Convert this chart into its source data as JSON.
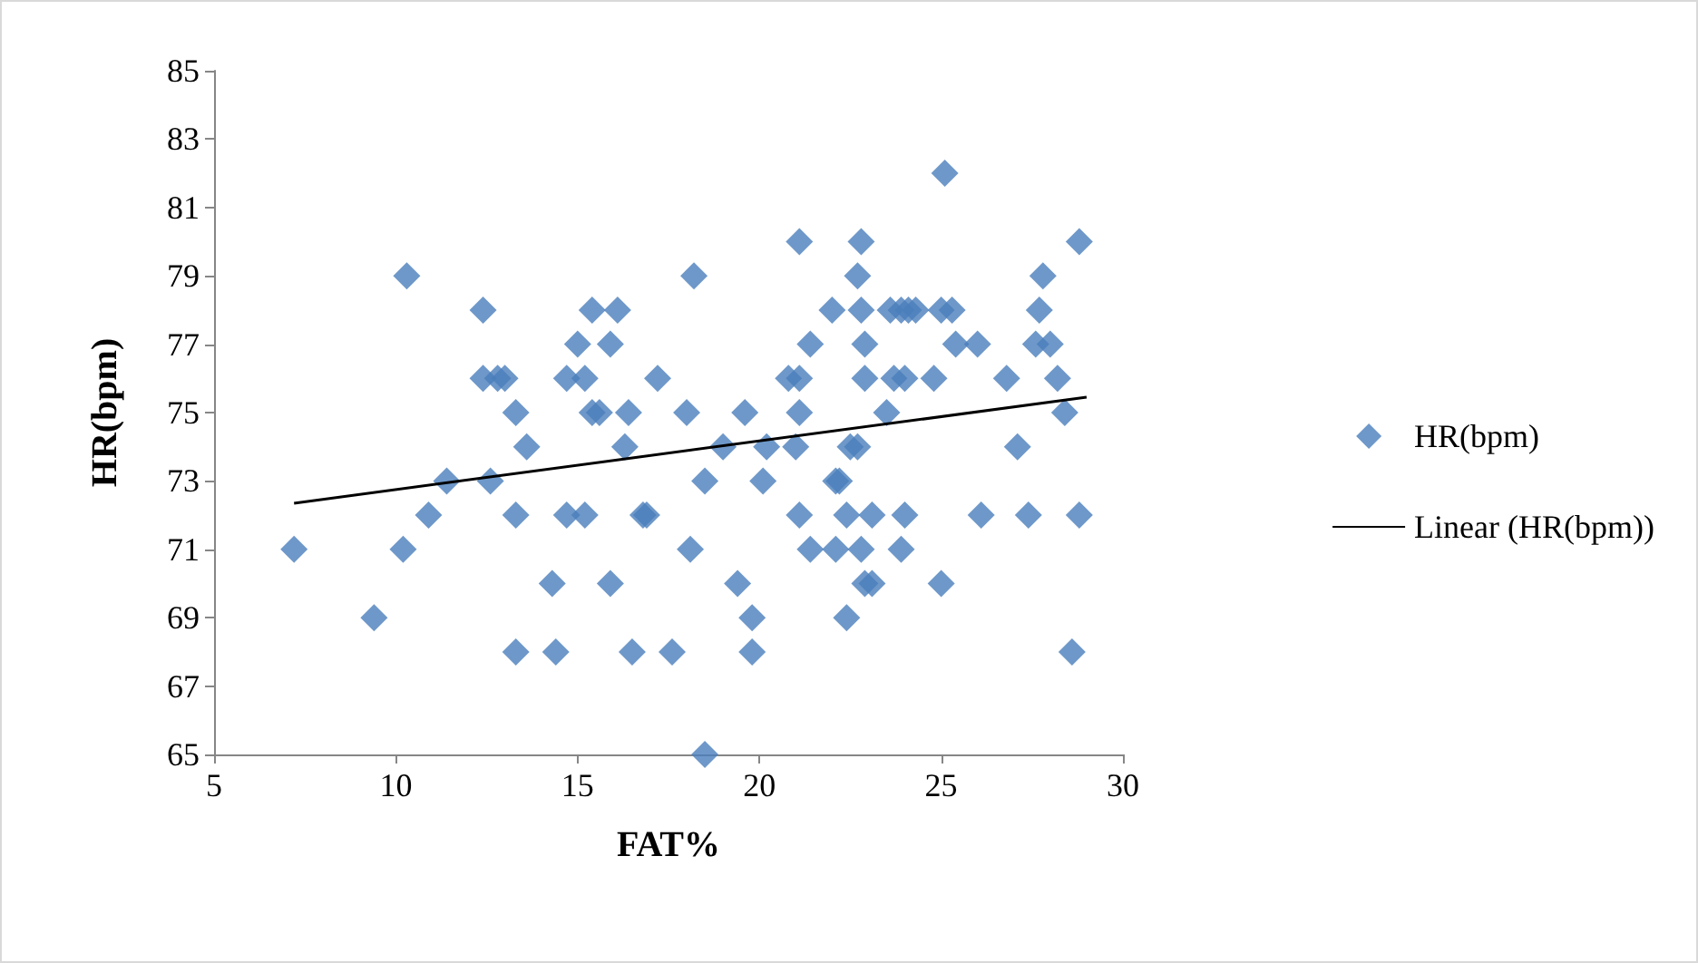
{
  "chart_data": {
    "type": "scatter",
    "xlabel": "FAT%",
    "ylabel": "HR(bpm)",
    "xlim": [
      5,
      30
    ],
    "xticks": [
      5,
      10,
      15,
      20,
      25,
      30
    ],
    "ylim": [
      65,
      85
    ],
    "yticks": [
      65,
      67,
      69,
      71,
      73,
      75,
      77,
      79,
      81,
      83,
      85
    ],
    "grid": false,
    "legend": "right",
    "marker": "diamond",
    "series": [
      {
        "name": "HR(bpm)",
        "color": "#4a7ebb",
        "x": [
          7.2,
          9.4,
          10.3,
          10.2,
          10.9,
          11.4,
          12.4,
          12.4,
          12.8,
          13.0,
          12.6,
          13.3,
          13.6,
          13.3,
          13.3,
          14.3,
          14.4,
          14.7,
          14.7,
          15.0,
          15.2,
          15.4,
          15.2,
          15.4,
          15.6,
          15.9,
          15.9,
          16.1,
          16.3,
          16.4,
          16.5,
          16.8,
          16.9,
          17.2,
          17.6,
          18.0,
          18.1,
          18.2,
          18.5,
          18.5,
          19.0,
          19.4,
          19.6,
          19.8,
          19.8,
          20.1,
          20.2,
          20.8,
          21.1,
          21.0,
          21.1,
          21.1,
          21.1,
          21.4,
          21.4,
          22.0,
          22.1,
          22.2,
          22.1,
          22.4,
          22.4,
          22.5,
          22.7,
          22.8,
          22.7,
          22.8,
          22.9,
          22.9,
          22.8,
          22.9,
          23.1,
          23.1,
          23.5,
          23.6,
          23.7,
          23.9,
          23.9,
          24.0,
          24.0,
          24.1,
          24.3,
          24.8,
          25.0,
          25.1,
          25.0,
          25.4,
          25.3,
          26.0,
          26.1,
          26.8,
          27.1,
          27.4,
          27.8,
          27.6,
          27.7,
          28.0,
          28.2,
          28.4,
          28.6,
          28.8,
          28.8
        ],
        "values": [
          71,
          69,
          79,
          71,
          72,
          73,
          78,
          76,
          76,
          76,
          73,
          75,
          74,
          72,
          68,
          70,
          68,
          76,
          72,
          77,
          72,
          78,
          76,
          75,
          75,
          70,
          77,
          78,
          74,
          75,
          68,
          72,
          72,
          76,
          68,
          75,
          71,
          79,
          73,
          65,
          74,
          70,
          75,
          69,
          68,
          73,
          74,
          76,
          76,
          74,
          75,
          72,
          80,
          77,
          71,
          78,
          73,
          73,
          71,
          72,
          69,
          74,
          79,
          80,
          74,
          71,
          77,
          76,
          78,
          70,
          70,
          72,
          75,
          78,
          76,
          71,
          78,
          76,
          72,
          78,
          78,
          76,
          70,
          82,
          78,
          77,
          78,
          77,
          72,
          76,
          74,
          72,
          79,
          77,
          78,
          77,
          76,
          75,
          68,
          80,
          72
        ]
      },
      {
        "name": "Linear (HR(bpm))",
        "type": "line",
        "color": "#000000",
        "marker": "none",
        "x": [
          7.2,
          29
        ],
        "values": [
          72.35,
          75.45
        ]
      }
    ]
  }
}
